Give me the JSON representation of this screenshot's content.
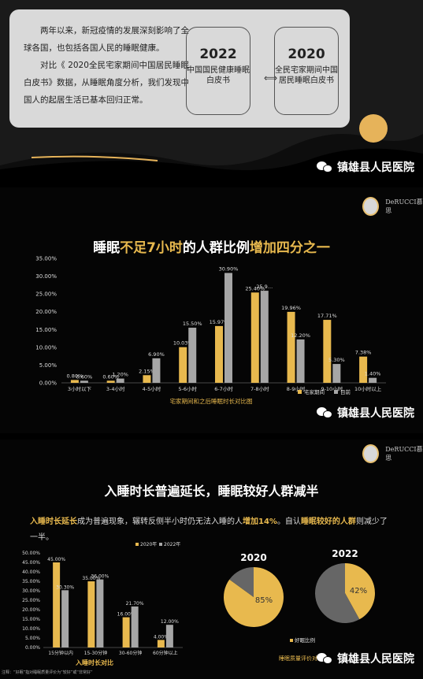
{
  "panel1": {
    "paragraph1": "两年以来，新冠疫情的发展深刻影响了全球各国，也包括各国人民的睡眠健康。",
    "paragraph2": "对比《 2020全民宅家期间中国居民睡眠白皮书》数据，从睡眠角度分析，我们发现中国人的起居生活已基本回归正常。",
    "box_left": {
      "year": "2022",
      "desc": "中国国民健康睡眠白皮书"
    },
    "box_right": {
      "year": "2020",
      "desc": "全民宅家期间中国居民睡眠白皮书"
    },
    "arrow": "⟺"
  },
  "brand": {
    "name": "镇雄县人民医院",
    "logo_text": "DeRUCCI慕思",
    "icon": "wechat-icon"
  },
  "colors": {
    "gold": "#e8b94e",
    "gray": "#a6a6a6"
  },
  "panel2": {
    "title_parts": [
      "睡眠",
      "不足7小时",
      "的人群比例",
      "增加四分之一"
    ],
    "subtitle": "宅家期间和之后睡眠时长对比图"
  },
  "panel3": {
    "heading": "入睡时长普遍延长，睡眠较好人群减半",
    "para_parts": [
      "入睡时长延长",
      "成为普遍现象，辗转反侧半小时仍无法入睡的人",
      "增加14%",
      "。自认",
      "睡眠较好的人群",
      "则减少了一半。"
    ],
    "footnote": "注释：“好眠”指对睡眠质量评价为“较好”或“非常好”"
  },
  "chart_data": [
    {
      "type": "bar",
      "title": "睡眠不足7小时的人群比例增加四分之一",
      "xlabel": "宅家期间和之后睡眠时长对比图",
      "categories": [
        "3小时以下",
        "3-4小时",
        "4-5小时",
        "5-6小时",
        "6-7小时",
        "7-8小时",
        "8-9小时",
        "9-10小时",
        "10小时以上"
      ],
      "series": [
        {
          "name": "宅家期间",
          "values": [
            0.8,
            0.6,
            2.15,
            10.03,
            15.97,
            25.4,
            19.96,
            17.71,
            7.38
          ]
        },
        {
          "name": "目前",
          "values": [
            0.6,
            1.2,
            6.9,
            15.5,
            30.9,
            25.9,
            12.2,
            5.3,
            1.4
          ]
        }
      ],
      "value_labels": [
        [
          "0.80%",
          "0.60%",
          "2.15%",
          "10.03%",
          "15.97%",
          "25.40%",
          "19.96%",
          "17.71%",
          "7.38%"
        ],
        [
          "0.60%",
          "1.20%",
          "6.90%",
          "15.50%",
          "30.90%",
          "25.9…",
          "12.20%",
          "5.30%",
          "1.40%"
        ]
      ],
      "yticks": [
        "0.00%",
        "5.00%",
        "10.00%",
        "15.00%",
        "20.00%",
        "25.00%",
        "30.00%",
        "35.00%"
      ],
      "ylim": [
        0,
        35
      ],
      "legend": "bottom-right",
      "grid": false
    },
    {
      "type": "bar",
      "xlabel": "入睡时长对比",
      "categories": [
        "15分钟以内",
        "15-30分钟",
        "30-60分钟",
        "60分钟以上"
      ],
      "series": [
        {
          "name": "2020年",
          "values": [
            45.0,
            35.0,
            16.0,
            4.0
          ]
        },
        {
          "name": "2022年",
          "values": [
            30.3,
            36.0,
            21.7,
            12.0
          ]
        }
      ],
      "value_labels": [
        [
          "45.00%",
          "35.00%",
          "16.00%",
          "4.00%"
        ],
        [
          "30.30%",
          "36.00%",
          "21.70%",
          "12.00%"
        ]
      ],
      "yticks": [
        "0.00%",
        "5.00%",
        "10.00%",
        "15.00%",
        "20.00%",
        "25.00%",
        "30.00%",
        "35.00%",
        "40.00%",
        "45.00%",
        "50.00%"
      ],
      "ylim": [
        0,
        50
      ],
      "legend": "top"
    },
    {
      "type": "pie",
      "title": "2020",
      "slices": [
        {
          "name": "好眠比例",
          "value": 85
        },
        {
          "name": "",
          "value": 15
        }
      ],
      "label": "85%"
    },
    {
      "type": "pie",
      "title": "2022",
      "slices": [
        {
          "name": "好眠比例",
          "value": 42
        },
        {
          "name": "",
          "value": 58
        }
      ],
      "label": "42%"
    },
    {
      "type": "pie",
      "xlabel": "睡眠质量评价对比",
      "legend_entry": "好眠比例"
    }
  ]
}
